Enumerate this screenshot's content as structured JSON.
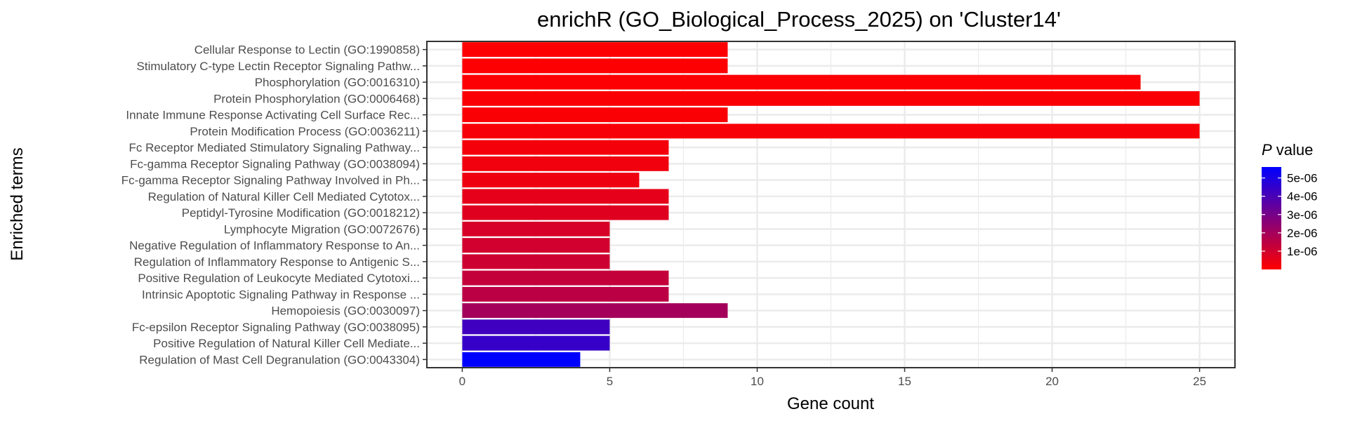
{
  "chart_data": {
    "type": "bar",
    "orientation": "horizontal",
    "title": "enrichR (GO_Biological_Process_2025) on 'Cluster14'",
    "xlabel": "Gene count",
    "ylabel": "Enriched terms",
    "xlim": [
      -1.2,
      26.2
    ],
    "xticks": [
      0,
      5,
      10,
      15,
      20,
      25
    ],
    "grid": true,
    "legend": {
      "title_italic": "P",
      "title_rest": " value",
      "placement": "right",
      "min": 0.0,
      "max": 5.6e-06,
      "color_low": "#FF0000",
      "color_high": "#0000FF",
      "ticks": [
        {
          "value": 1e-06,
          "label": "1e-06"
        },
        {
          "value": 2e-06,
          "label": "2e-06"
        },
        {
          "value": 3e-06,
          "label": "3e-06"
        },
        {
          "value": 4e-06,
          "label": "4e-06"
        },
        {
          "value": 5e-06,
          "label": "5e-06"
        }
      ]
    },
    "bars": [
      {
        "term": "Cellular Response to Lectin (GO:1990858)",
        "value": 9,
        "p": 4e-08
      },
      {
        "term": "Stimulatory C-type Lectin Receptor Signaling Pathw...",
        "value": 9,
        "p": 4e-08
      },
      {
        "term": "Phosphorylation (GO:0016310)",
        "value": 23,
        "p": 6e-08
      },
      {
        "term": "Protein Phosphorylation (GO:0006468)",
        "value": 25,
        "p": 1e-07
      },
      {
        "term": "Innate Immune Response Activating Cell Surface Rec...",
        "value": 9,
        "p": 1.2e-07
      },
      {
        "term": "Protein Modification Process (GO:0036211)",
        "value": 25,
        "p": 1.5e-07
      },
      {
        "term": "Fc Receptor Mediated Stimulatory Signaling Pathway...",
        "value": 7,
        "p": 2.5e-07
      },
      {
        "term": "Fc-gamma Receptor Signaling Pathway (GO:0038094)",
        "value": 7,
        "p": 3e-07
      },
      {
        "term": "Fc-gamma Receptor Signaling Pathway Involved in Ph...",
        "value": 6,
        "p": 3.5e-07
      },
      {
        "term": "Regulation of Natural Killer Cell Mediated Cytotox...",
        "value": 7,
        "p": 5.5e-07
      },
      {
        "term": "Peptidyl-Tyrosine Modification (GO:0018212)",
        "value": 7,
        "p": 7e-07
      },
      {
        "term": "Lymphocyte Migration (GO:0072676)",
        "value": 5,
        "p": 9e-07
      },
      {
        "term": "Negative Regulation of Inflammatory Response to An...",
        "value": 5,
        "p": 1e-06
      },
      {
        "term": "Regulation of Inflammatory Response to Antigenic S...",
        "value": 5,
        "p": 1.1e-06
      },
      {
        "term": "Positive Regulation of Leukocyte Mediated Cytotoxi...",
        "value": 7,
        "p": 1.3e-06
      },
      {
        "term": "Intrinsic Apoptotic Signaling Pathway in Response ...",
        "value": 7,
        "p": 1.5e-06
      },
      {
        "term": "Hemopoiesis (GO:0030097)",
        "value": 9,
        "p": 2e-06
      },
      {
        "term": "Fc-epsilon Receptor Signaling Pathway (GO:0038095)",
        "value": 5,
        "p": 4.2e-06
      },
      {
        "term": "Positive Regulation of Natural Killer Cell Mediate...",
        "value": 5,
        "p": 4.4e-06
      },
      {
        "term": "Regulation of Mast Cell Degranulation (GO:0043304)",
        "value": 4,
        "p": 5.6e-06
      }
    ]
  }
}
